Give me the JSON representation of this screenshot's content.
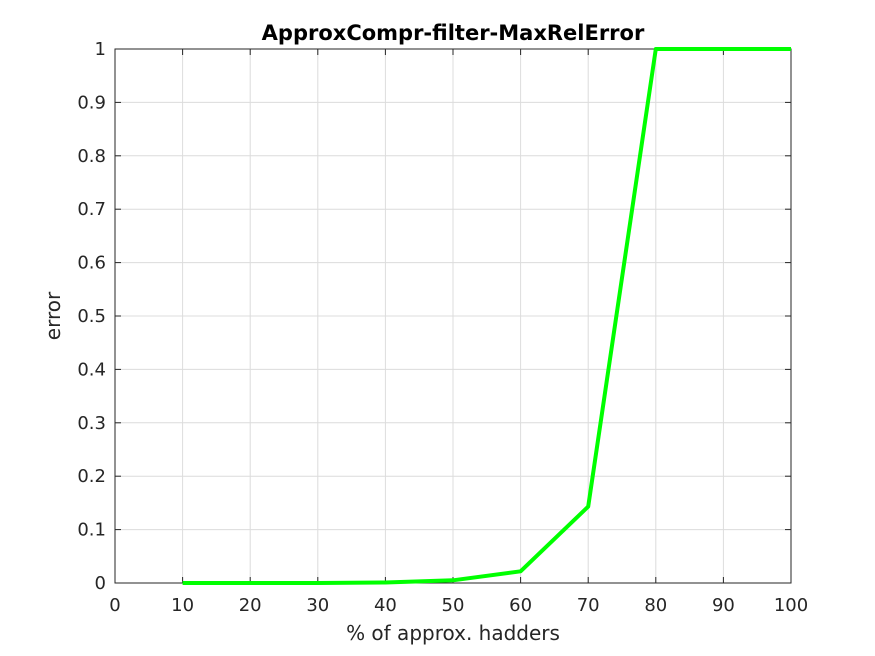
{
  "chart_data": {
    "type": "line",
    "title": "ApproxCompr-filter-MaxRelError",
    "xlabel": "% of approx. hadders",
    "ylabel": "error",
    "xlim": [
      0,
      100
    ],
    "ylim": [
      0,
      1
    ],
    "xticks": [
      "0",
      "10",
      "20",
      "30",
      "40",
      "50",
      "60",
      "70",
      "80",
      "90",
      "100"
    ],
    "yticks": [
      "0",
      "0.1",
      "0.2",
      "0.3",
      "0.4",
      "0.5",
      "0.6",
      "0.7",
      "0.8",
      "0.9",
      "1"
    ],
    "grid": true,
    "series": [
      {
        "color": "#00ff00",
        "x": [
          10,
          20,
          30,
          40,
          50,
          60,
          70,
          80,
          90,
          100
        ],
        "y": [
          0,
          0,
          0,
          0.001,
          0.005,
          0.022,
          0.143,
          1,
          1,
          1
        ]
      }
    ]
  }
}
